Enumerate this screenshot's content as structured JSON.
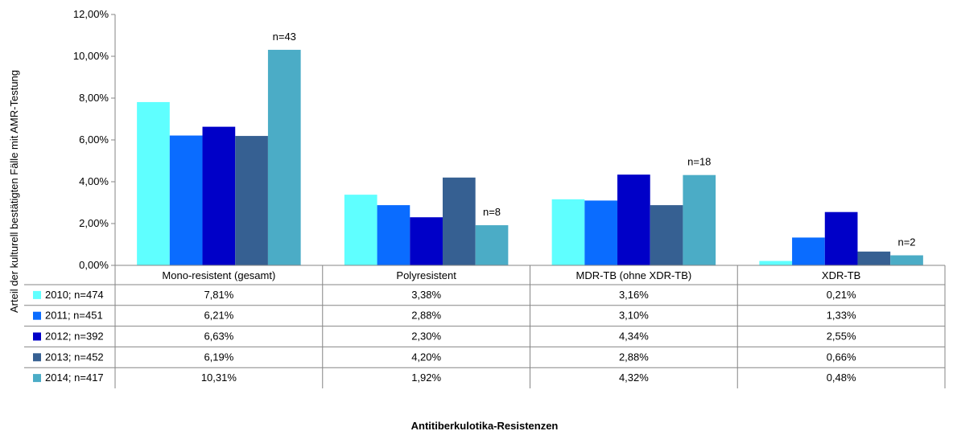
{
  "chart_data": {
    "type": "bar",
    "title": "",
    "xlabel": "Antitiberkulotika-Resistenzen",
    "ylabel": "Arteil der kulturell bestätigten Fälle mit AMR-Testung",
    "ylim": [
      0,
      12
    ],
    "yticks": [
      "0,00%",
      "2,00%",
      "4,00%",
      "6,00%",
      "8,00%",
      "10,00%",
      "12,00%"
    ],
    "grid": false,
    "legend_placement": "data-table-left",
    "categories": [
      "Mono-resistent (gesamt)",
      "Polyresistent",
      "MDR-TB (ohne XDR-TB)",
      "XDR-TB"
    ],
    "series": [
      {
        "name": "2010; n=474",
        "color": "#5FFFFF",
        "values": [
          7.81,
          3.38,
          3.16,
          0.21
        ],
        "labels": [
          "7,81%",
          "3,38%",
          "3,16%",
          "0,21%"
        ]
      },
      {
        "name": "2011; n=451",
        "color": "#0A6CFF",
        "values": [
          6.21,
          2.88,
          3.1,
          1.33
        ],
        "labels": [
          "6,21%",
          "2,88%",
          "3,10%",
          "1,33%"
        ]
      },
      {
        "name": "2012; n=392",
        "color": "#0000C8",
        "values": [
          6.63,
          2.3,
          4.34,
          2.55
        ],
        "labels": [
          "6,63%",
          "2,30%",
          "4,34%",
          "2,55%"
        ]
      },
      {
        "name": "2013; n=452",
        "color": "#366092",
        "values": [
          6.19,
          4.2,
          2.88,
          0.66
        ],
        "labels": [
          "6,19%",
          "4,20%",
          "2,88%",
          "0,66%"
        ]
      },
      {
        "name": "2014; n=417",
        "color": "#4BACC6",
        "values": [
          10.31,
          1.92,
          4.32,
          0.48
        ],
        "labels": [
          "10,31%",
          "1,92%",
          "4,32%",
          "0,48%"
        ]
      }
    ],
    "annotations": [
      {
        "category": 0,
        "series": 4,
        "text": "n=43"
      },
      {
        "category": 1,
        "series": 4,
        "text": "n=8"
      },
      {
        "category": 2,
        "series": 4,
        "text": "n=18"
      },
      {
        "category": 3,
        "series": 4,
        "text": "n=2"
      }
    ]
  }
}
